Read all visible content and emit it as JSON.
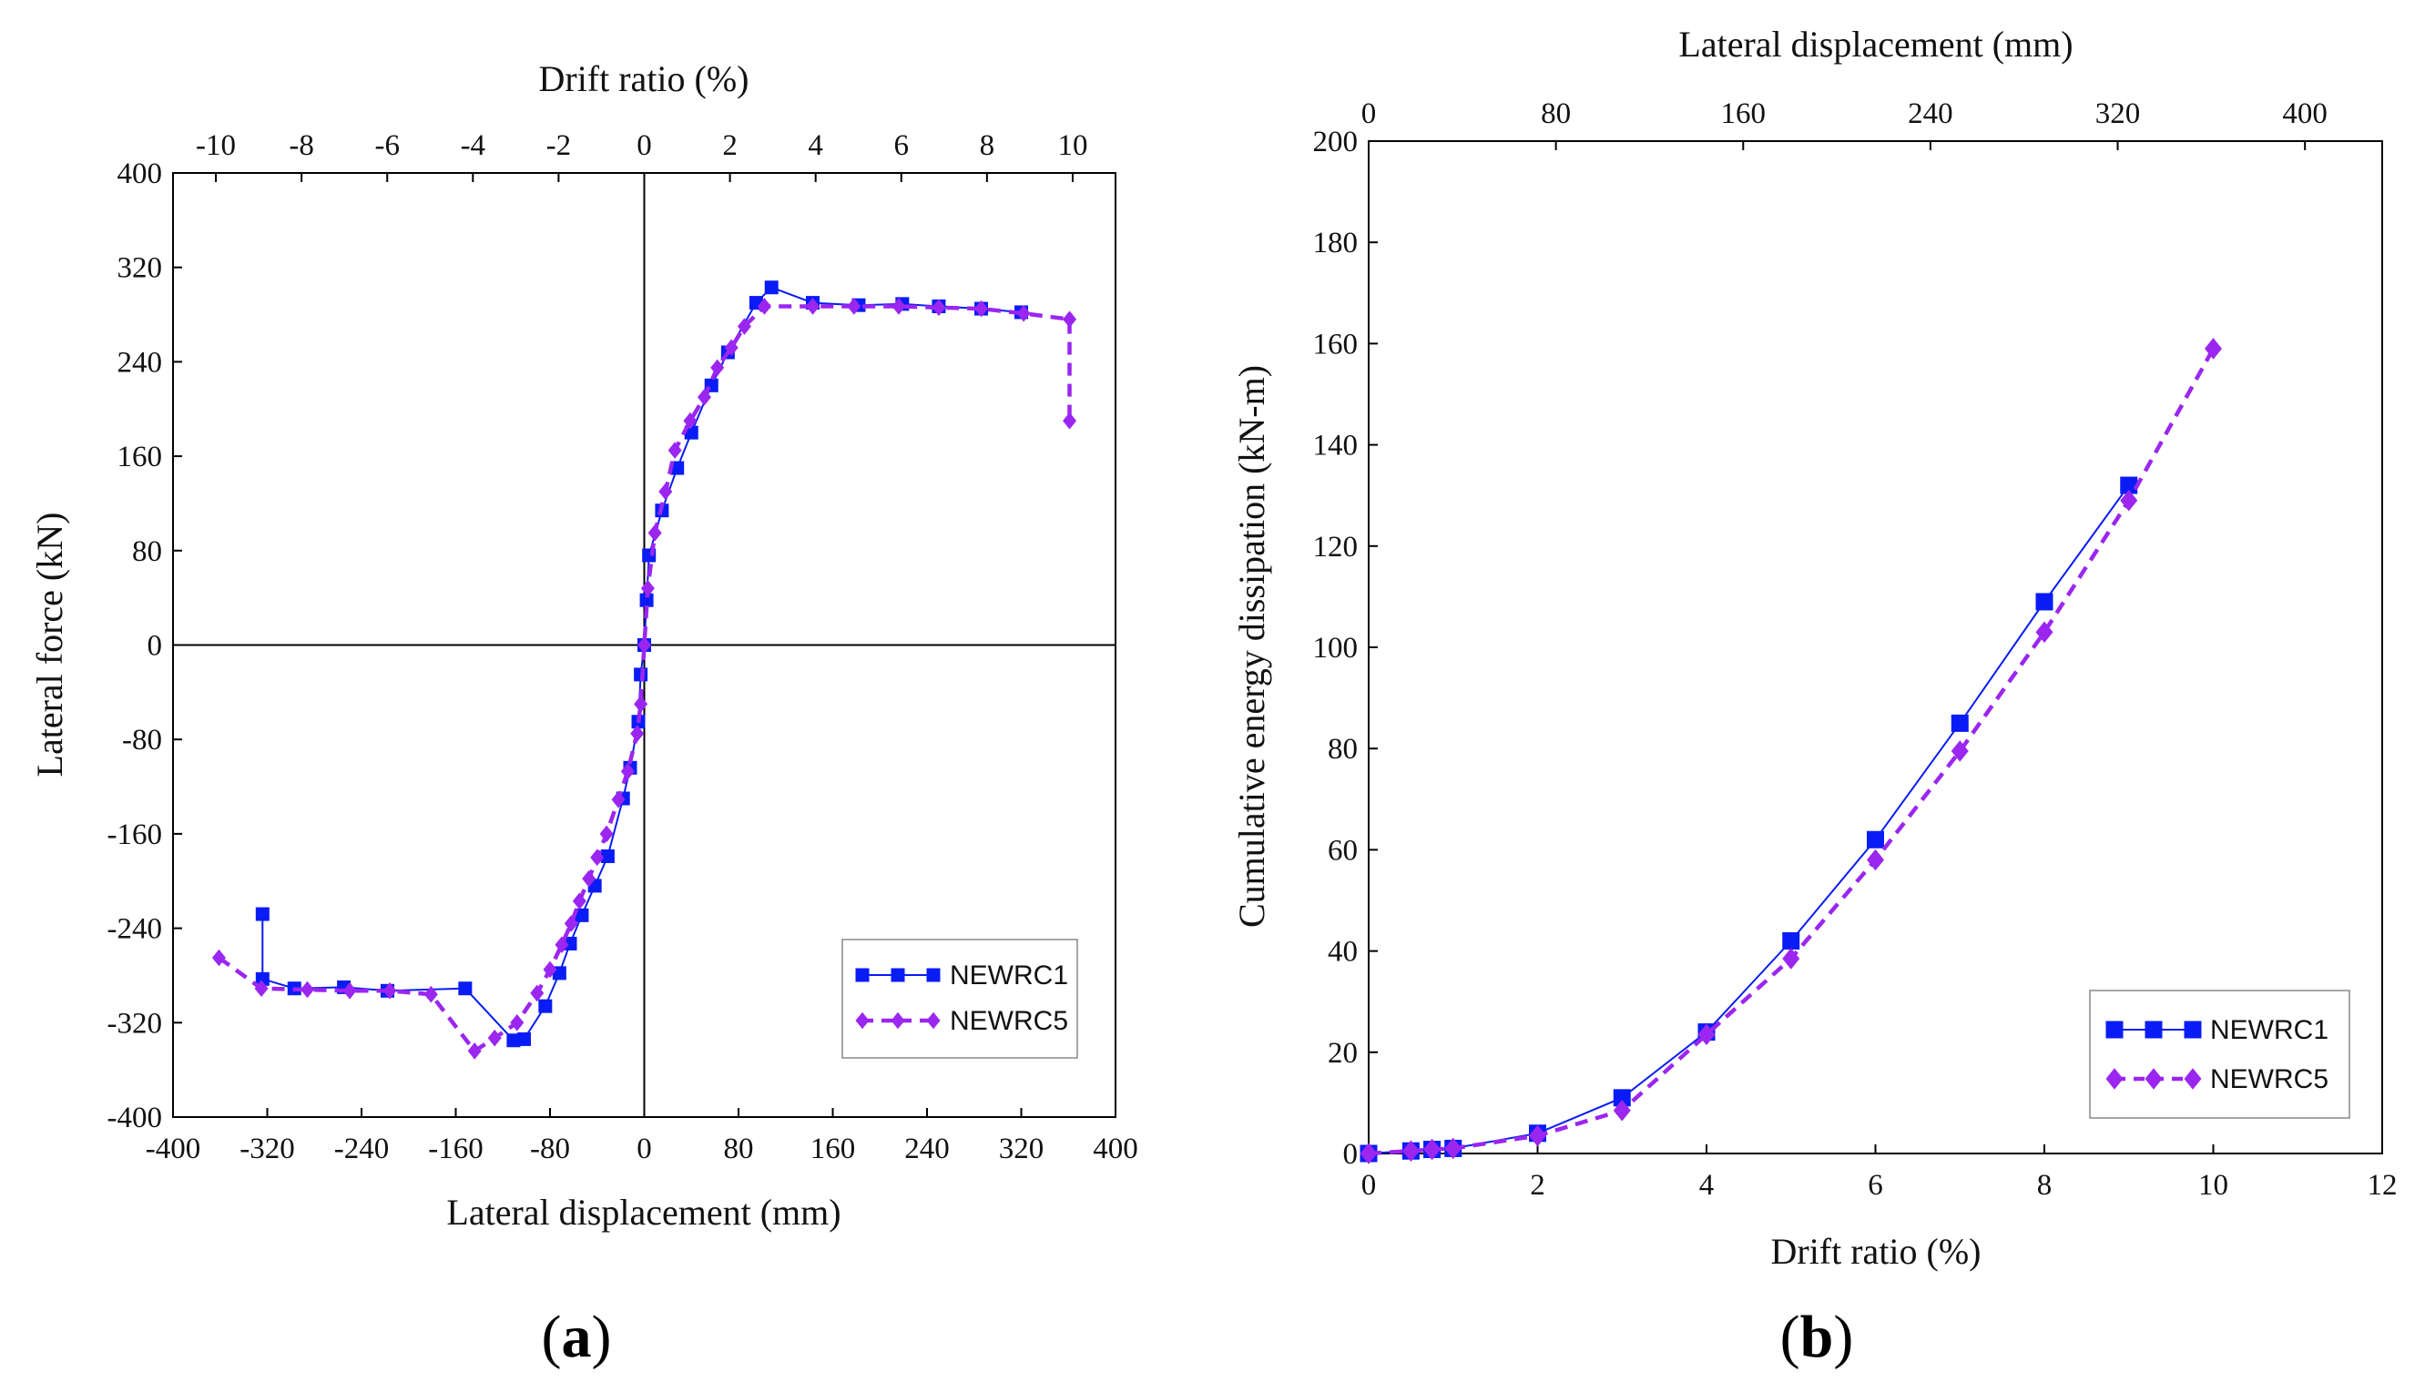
{
  "colors": {
    "newrc1": "#0a1cf5",
    "newrc5": "#9b26f0",
    "axis": "#000000"
  },
  "chart_data": [
    {
      "id": "a",
      "panel_label": "a",
      "type": "line",
      "xlabel": "Lateral displacement (mm)",
      "ylabel": "Lateral force (kN)",
      "x2label": "Drift ratio (%)",
      "xlim": [
        -400,
        400
      ],
      "ylim": [
        -400,
        400
      ],
      "x2lim": [
        -11,
        11
      ],
      "xticks": [
        -400,
        -320,
        -240,
        -160,
        -80,
        0,
        80,
        160,
        240,
        320,
        400
      ],
      "yticks": [
        -400,
        -320,
        -240,
        -160,
        -80,
        0,
        80,
        160,
        240,
        320,
        400
      ],
      "x2ticks": [
        -10,
        -8,
        -6,
        -4,
        -2,
        0,
        2,
        4,
        6,
        8,
        10
      ],
      "zero_lines": true,
      "legend_position": "bottom-right",
      "series": [
        {
          "name": "NEWRC1",
          "marker": "square",
          "dash": "solid",
          "x": [
            -324,
            -324,
            -297,
            -255,
            -218,
            -152,
            -111,
            -102,
            -84,
            -72,
            -63,
            -53,
            -42,
            -31,
            -18,
            -12,
            -5,
            -3,
            0,
            2,
            4,
            15,
            28,
            40,
            57,
            71,
            95,
            108,
            143,
            182,
            219,
            250,
            286,
            320
          ],
          "y": [
            -228,
            -283,
            -291,
            -290,
            -293,
            -291,
            -335,
            -334,
            -306,
            -278,
            -253,
            -229,
            -204,
            -179,
            -130,
            -104,
            -65,
            -25,
            0,
            38,
            76,
            114,
            150,
            180,
            220,
            248,
            290,
            303,
            290,
            288,
            289,
            287,
            285,
            282
          ]
        },
        {
          "name": "NEWRC5",
          "marker": "diamond",
          "dash": "dashed",
          "x": [
            -361,
            -325,
            -286,
            -250,
            -216,
            -181,
            -144,
            -127,
            -108,
            -91,
            -80,
            -70,
            -62,
            -55,
            -47,
            -40,
            -32,
            -22,
            -14,
            -6,
            -3,
            0,
            3,
            9,
            18,
            26,
            39,
            51,
            62,
            74,
            85,
            102,
            143,
            178,
            216,
            250,
            286,
            322,
            361,
            361
          ],
          "y": [
            -265,
            -291,
            -292,
            -293,
            -293,
            -296,
            -344,
            -333,
            -320,
            -295,
            -275,
            -254,
            -236,
            -217,
            -198,
            -180,
            -160,
            -131,
            -107,
            -75,
            -50,
            0,
            48,
            95,
            130,
            165,
            190,
            210,
            235,
            252,
            270,
            287,
            287,
            287,
            287,
            286,
            285,
            281,
            276,
            190
          ]
        }
      ]
    },
    {
      "id": "b",
      "panel_label": "b",
      "type": "line",
      "xlabel": "Drift ratio (%)",
      "ylabel": "Cumulative energy dissipation (kN-m)",
      "x2label": "Lateral displacement (mm)",
      "xlim": [
        0,
        12
      ],
      "ylim": [
        0,
        200
      ],
      "x2lim": [
        0,
        433
      ],
      "xticks": [
        0,
        2,
        4,
        6,
        8,
        10,
        12
      ],
      "yticks": [
        0,
        20,
        40,
        60,
        80,
        100,
        120,
        140,
        160,
        180,
        200
      ],
      "x2ticks": [
        0,
        80,
        160,
        240,
        320,
        400
      ],
      "zero_lines": false,
      "legend_position": "bottom-right",
      "series": [
        {
          "name": "NEWRC1",
          "marker": "square",
          "dash": "solid",
          "x": [
            0,
            0.5,
            0.75,
            1,
            2,
            3,
            4,
            5,
            6,
            7,
            8,
            9
          ],
          "y": [
            0,
            0.5,
            0.8,
            1,
            4,
            11,
            24,
            42,
            62,
            85,
            109,
            132
          ]
        },
        {
          "name": "NEWRC5",
          "marker": "diamond",
          "dash": "dashed",
          "x": [
            0,
            0.5,
            0.75,
            1,
            2,
            3,
            4,
            5,
            6,
            7,
            8,
            9,
            10
          ],
          "y": [
            0,
            0.5,
            0.8,
            1,
            3.5,
            8.5,
            23.5,
            38.5,
            58,
            79.5,
            103,
            129,
            159
          ]
        }
      ]
    }
  ]
}
